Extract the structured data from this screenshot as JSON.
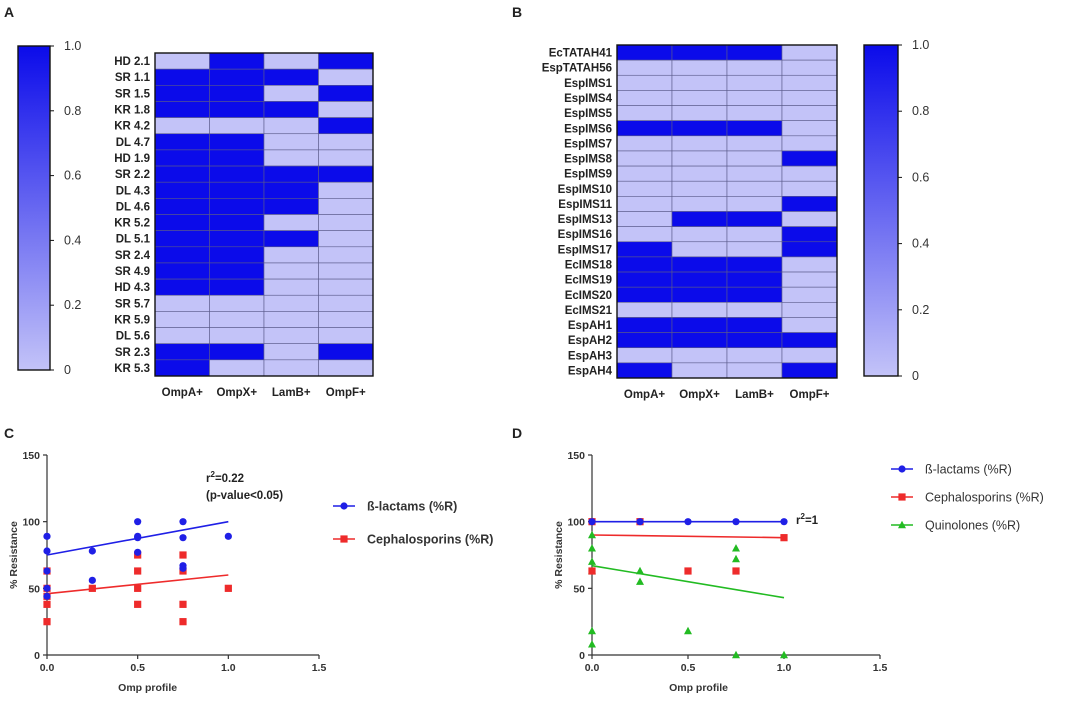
{
  "chart_data": [
    {
      "panel": "A",
      "type": "heatmap",
      "rows": [
        "HD 2.1",
        "SR 1.1",
        "SR 1.5",
        "KR 1.8",
        "KR 4.2",
        "DL 4.7",
        "HD 1.9",
        "SR 2.2",
        "DL 4.3",
        "DL 4.6",
        "KR 5.2",
        "DL 5.1",
        "SR 2.4",
        "SR 4.9",
        "HD 4.3",
        "SR 5.7",
        "KR 5.9",
        "DL 5.6",
        "SR 2.3",
        "KR 5.3"
      ],
      "columns": [
        "OmpA+",
        "OmpX+",
        "LamB+",
        "OmpF+"
      ],
      "values": [
        [
          0,
          1,
          0,
          1
        ],
        [
          1,
          1,
          1,
          0
        ],
        [
          1,
          1,
          0,
          1
        ],
        [
          1,
          1,
          1,
          0
        ],
        [
          0,
          0,
          0,
          1
        ],
        [
          1,
          1,
          0,
          0
        ],
        [
          1,
          1,
          0,
          0
        ],
        [
          1,
          1,
          1,
          1
        ],
        [
          1,
          1,
          1,
          0
        ],
        [
          1,
          1,
          1,
          0
        ],
        [
          1,
          1,
          0,
          0
        ],
        [
          1,
          1,
          1,
          0
        ],
        [
          1,
          1,
          0,
          0
        ],
        [
          1,
          1,
          0,
          0
        ],
        [
          1,
          1,
          0,
          0
        ],
        [
          0,
          0,
          0,
          0
        ],
        [
          0,
          0,
          0,
          0
        ],
        [
          0,
          0,
          0,
          0
        ],
        [
          1,
          1,
          0,
          1
        ],
        [
          1,
          0,
          0,
          0
        ]
      ],
      "colorbar": {
        "min": 0,
        "max": 1.0,
        "ticks": [
          "0",
          "0.2",
          "0.4",
          "0.6",
          "0.8",
          "1.0"
        ]
      },
      "colors": {
        "low": "#c3c3f8",
        "high": "#0b0bea"
      }
    },
    {
      "panel": "B",
      "type": "heatmap",
      "rows": [
        "EcTATAH41",
        "EspTATAH56",
        "EspIMS1",
        "EspIMS4",
        "EspIMS5",
        "EspIMS6",
        "EspIMS7",
        "EspIMS8",
        "EspIMS9",
        "EspIMS10",
        "EspIMS11",
        "EspIMS13",
        "EspIMS16",
        "EspIMS17",
        "EcIMS18",
        "EcIMS19",
        "EcIMS20",
        "EcIMS21",
        "EspAH1",
        "EspAH2",
        "EspAH3",
        "EspAH4"
      ],
      "columns": [
        "OmpA+",
        "OmpX+",
        "LamB+",
        "OmpF+"
      ],
      "values": [
        [
          1,
          1,
          1,
          0
        ],
        [
          0,
          0,
          0,
          0
        ],
        [
          0,
          0,
          0,
          0
        ],
        [
          0,
          0,
          0,
          0
        ],
        [
          0,
          0,
          0,
          0
        ],
        [
          1,
          1,
          1,
          0
        ],
        [
          0,
          0,
          0,
          0
        ],
        [
          0,
          0,
          0,
          1
        ],
        [
          0,
          0,
          0,
          0
        ],
        [
          0,
          0,
          0,
          0
        ],
        [
          0,
          0,
          0,
          1
        ],
        [
          0,
          1,
          1,
          0
        ],
        [
          0,
          0,
          0,
          1
        ],
        [
          1,
          0,
          0,
          1
        ],
        [
          1,
          1,
          1,
          0
        ],
        [
          1,
          1,
          1,
          0
        ],
        [
          1,
          1,
          1,
          0
        ],
        [
          0,
          0,
          0,
          0
        ],
        [
          1,
          1,
          1,
          0
        ],
        [
          1,
          1,
          1,
          1
        ],
        [
          0,
          0,
          0,
          0
        ],
        [
          1,
          0,
          0,
          1
        ]
      ],
      "colorbar": {
        "min": 0,
        "max": 1.0,
        "ticks": [
          "0",
          "0.2",
          "0.4",
          "0.6",
          "0.8",
          "1.0"
        ]
      },
      "colors": {
        "low": "#c3c3f8",
        "high": "#0b0bea"
      }
    },
    {
      "panel": "C",
      "type": "scatter",
      "xlabel": "Omp profile",
      "ylabel": "% Resistance",
      "xlim": [
        0,
        1.5
      ],
      "ylim": [
        0,
        150
      ],
      "xticks": [
        "0.0",
        "0.5",
        "1.0",
        "1.5"
      ],
      "yticks": [
        "0",
        "50",
        "100",
        "150"
      ],
      "annotation": {
        "line1": "r",
        "sup": "2",
        "line1_rest": "=0.22",
        "line2": "(p-value<0.05)"
      },
      "series": [
        {
          "name": "ß-lactams (%R)",
          "marker": "circle",
          "color": "#1f1fe6",
          "x": [
            0,
            0,
            0,
            0,
            0,
            0.25,
            0.25,
            0.5,
            0.5,
            0.5,
            0.5,
            0.75,
            0.75,
            0.75,
            0.75,
            1.0
          ],
          "y": [
            89,
            78,
            50,
            44,
            63,
            78,
            56,
            100,
            89,
            88,
            77,
            100,
            88,
            67,
            65,
            89
          ],
          "fit": [
            [
              0,
              75
            ],
            [
              1.0,
              100
            ]
          ]
        },
        {
          "name": "Cephalosporins (%R)",
          "marker": "square",
          "color": "#ee2b2b",
          "x": [
            0,
            0,
            0,
            0,
            0,
            0.25,
            0.5,
            0.5,
            0.5,
            0.5,
            0.75,
            0.75,
            0.75,
            0.75,
            1.0
          ],
          "y": [
            63,
            50,
            38,
            25,
            44,
            50,
            75,
            63,
            50,
            38,
            75,
            63,
            38,
            25,
            50
          ],
          "fit": [
            [
              0,
              46
            ],
            [
              1.0,
              60
            ]
          ]
        }
      ]
    },
    {
      "panel": "D",
      "type": "scatter",
      "xlabel": "Omp profile",
      "ylabel": "% Resistance",
      "xlim": [
        0,
        1.5
      ],
      "ylim": [
        0,
        150
      ],
      "xticks": [
        "0.0",
        "0.5",
        "1.0",
        "1.5"
      ],
      "yticks": [
        "0",
        "50",
        "100",
        "150"
      ],
      "annotation": {
        "line1": "r",
        "sup": "2",
        "line1_rest": "=1"
      },
      "series": [
        {
          "name": "ß-lactams (%R)",
          "marker": "circle",
          "color": "#1f1fe6",
          "x": [
            0,
            0.25,
            0.5,
            0.75,
            1.0
          ],
          "y": [
            100,
            100,
            100,
            100,
            100
          ],
          "fit": [
            [
              0,
              100
            ],
            [
              1.0,
              100
            ]
          ]
        },
        {
          "name": "Cephalosporins (%R)",
          "marker": "square",
          "color": "#ee2b2b",
          "x": [
            0,
            0,
            0.25,
            0.5,
            0.75,
            1.0
          ],
          "y": [
            100,
            63,
            100,
            63,
            63,
            88
          ],
          "fit": [
            [
              0,
              90
            ],
            [
              1.0,
              88
            ]
          ]
        },
        {
          "name": "Quinolones (%R)",
          "marker": "triangle",
          "color": "#22bb22",
          "x": [
            0,
            0,
            0,
            0,
            0,
            0,
            0.25,
            0.25,
            0.5,
            0.75,
            0.75,
            0.75,
            1.0
          ],
          "y": [
            90,
            80,
            70,
            63,
            18,
            8,
            63,
            55,
            18,
            80,
            72,
            0,
            0
          ],
          "fit": [
            [
              0,
              67
            ],
            [
              1.0,
              43
            ]
          ]
        }
      ]
    }
  ]
}
